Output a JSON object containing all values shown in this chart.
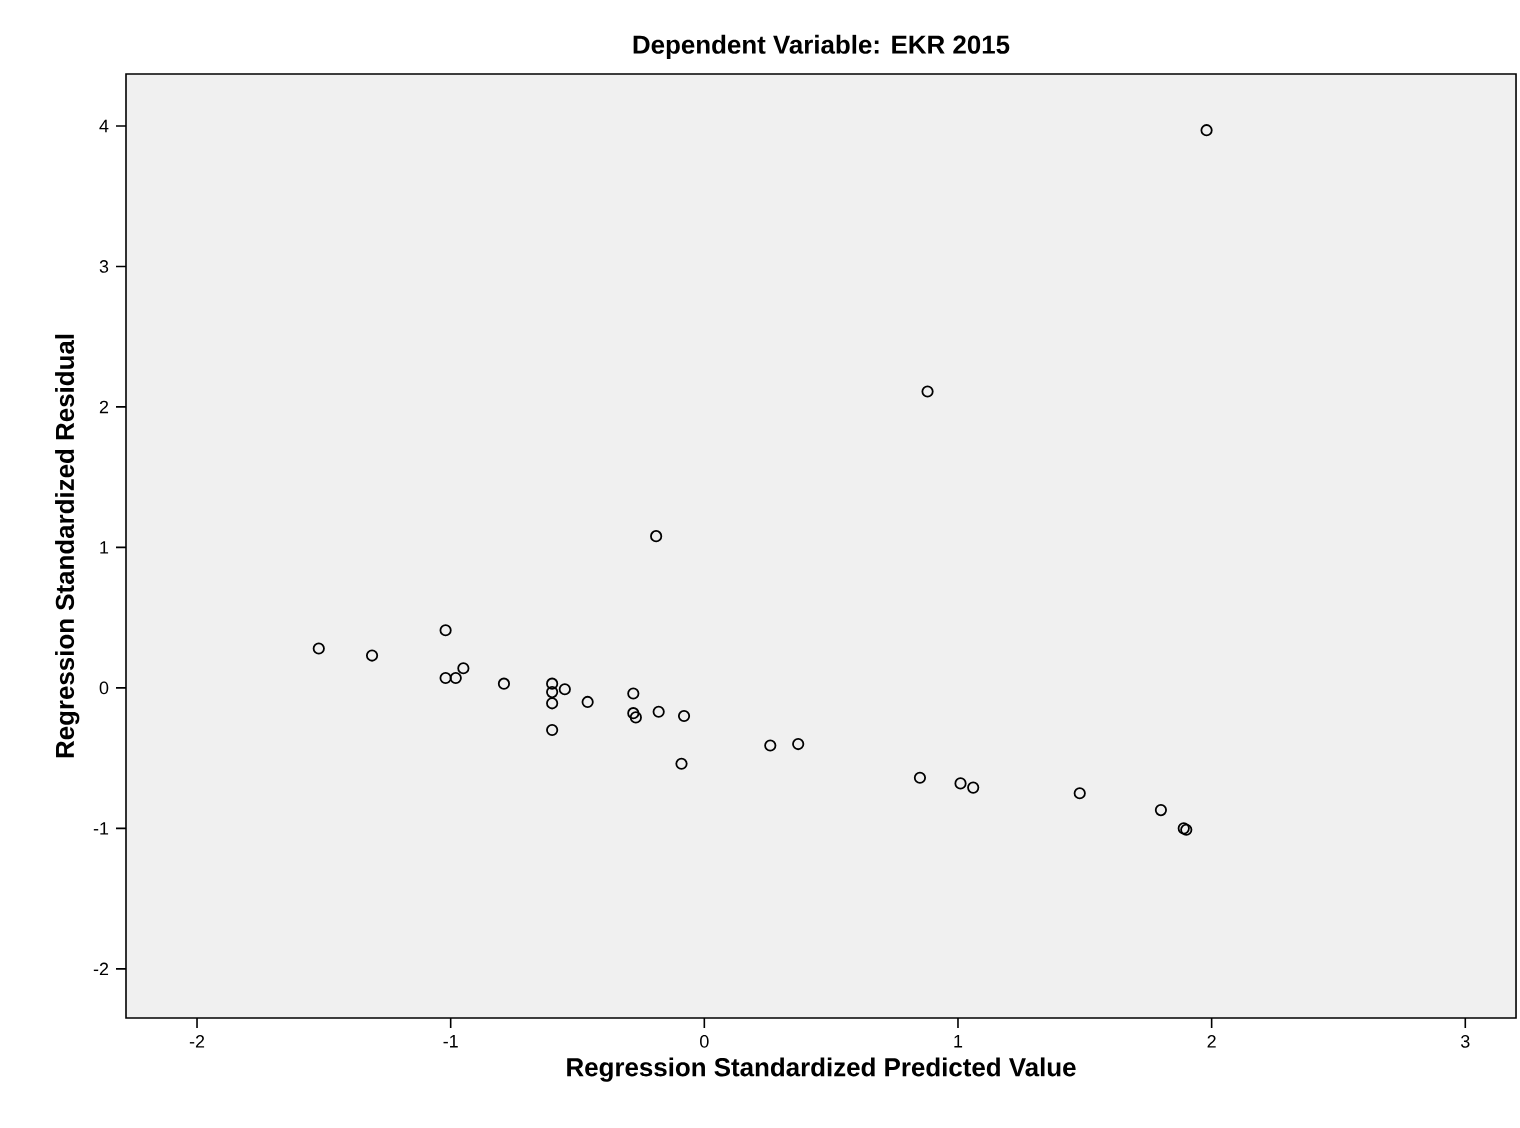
{
  "chart_data": {
    "type": "scatter",
    "title": "Dependent Variable: EKR 2015",
    "xlabel": "Regression Standardized Predicted Value",
    "ylabel": "Regression Standardized Residual",
    "x": [
      -1.52,
      -1.31,
      -1.02,
      -1.02,
      -0.98,
      -0.95,
      -0.79,
      -0.6,
      -0.6,
      -0.55,
      -0.6,
      -0.6,
      -0.46,
      -0.28,
      -0.28,
      -0.27,
      -0.18,
      -0.08,
      -0.09,
      -0.19,
      0.26,
      0.37,
      0.85,
      0.88,
      1.01,
      1.06,
      1.48,
      1.8,
      1.89,
      1.9,
      1.98
    ],
    "values": [
      0.28,
      0.23,
      0.41,
      0.07,
      0.07,
      0.14,
      0.03,
      0.03,
      -0.03,
      -0.01,
      -0.11,
      -0.3,
      -0.1,
      -0.04,
      -0.18,
      -0.21,
      -0.17,
      -0.2,
      -0.54,
      1.08,
      -0.41,
      -0.4,
      -0.64,
      2.11,
      -0.68,
      -0.71,
      -0.75,
      -0.87,
      -1.0,
      -1.01,
      3.97
    ],
    "color": "#000000",
    "marker": "circle",
    "xlim": [
      -2.28,
      3.2
    ],
    "ylim": [
      -2.35,
      4.37
    ],
    "xticks": [
      -2,
      -1,
      0,
      1,
      2,
      3
    ],
    "yticks": [
      -2,
      -1,
      0,
      1,
      2,
      3,
      4
    ]
  }
}
